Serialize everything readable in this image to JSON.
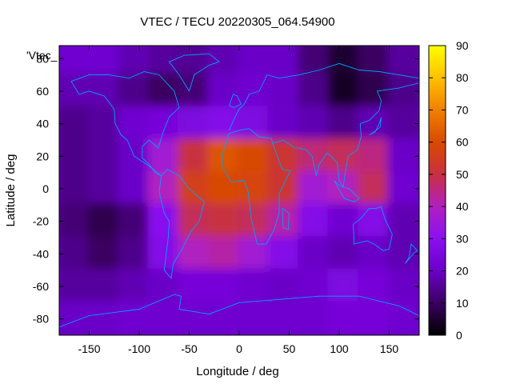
{
  "chart_data": {
    "type": "heatmap",
    "title": "VTEC / TECU 20220305_064.54900",
    "xlabel": "Longitude / deg",
    "ylabel": "Latitude / deg",
    "legend_label": "'Vtec_",
    "xlim": [
      -180,
      180
    ],
    "ylim": [
      -90,
      88
    ],
    "x_ticks": [
      -150,
      -100,
      -50,
      0,
      50,
      100,
      150
    ],
    "y_ticks": [
      -80,
      -60,
      -40,
      -20,
      0,
      20,
      40,
      60,
      80
    ],
    "colorbar": {
      "min": 0,
      "max": 90,
      "ticks": [
        0,
        10,
        20,
        30,
        40,
        50,
        60,
        70,
        80,
        90
      ]
    },
    "color_palette": [
      "#000000",
      "#3a0060",
      "#6a00c8",
      "#8a10f0",
      "#b020c0",
      "#c83040",
      "#d84a00",
      "#f08000",
      "#ffc000",
      "#ffff00"
    ],
    "map_line_color": "#00a0ff",
    "data_cells": [
      {
        "lon": -180,
        "lat": 80,
        "value": 22
      },
      {
        "lon": -150,
        "lat": 80,
        "value": 22
      },
      {
        "lon": -120,
        "lat": 80,
        "value": 18
      },
      {
        "lon": -90,
        "lat": 80,
        "value": 16
      },
      {
        "lon": -60,
        "lat": 80,
        "value": 15
      },
      {
        "lon": -30,
        "lat": 80,
        "value": 18
      },
      {
        "lon": 0,
        "lat": 80,
        "value": 20
      },
      {
        "lon": 30,
        "lat": 80,
        "value": 20
      },
      {
        "lon": 60,
        "lat": 80,
        "value": 12
      },
      {
        "lon": 90,
        "lat": 80,
        "value": 5
      },
      {
        "lon": 120,
        "lat": 80,
        "value": 10
      },
      {
        "lon": 150,
        "lat": 80,
        "value": 16
      },
      {
        "lon": -180,
        "lat": 60,
        "value": 18
      },
      {
        "lon": -150,
        "lat": 60,
        "value": 18
      },
      {
        "lon": -120,
        "lat": 60,
        "value": 14
      },
      {
        "lon": -90,
        "lat": 60,
        "value": 10
      },
      {
        "lon": -60,
        "lat": 60,
        "value": 12
      },
      {
        "lon": -30,
        "lat": 60,
        "value": 20
      },
      {
        "lon": 0,
        "lat": 60,
        "value": 22
      },
      {
        "lon": 30,
        "lat": 60,
        "value": 20
      },
      {
        "lon": 60,
        "lat": 60,
        "value": 14
      },
      {
        "lon": 90,
        "lat": 60,
        "value": 4
      },
      {
        "lon": 120,
        "lat": 60,
        "value": 8
      },
      {
        "lon": 150,
        "lat": 60,
        "value": 14
      },
      {
        "lon": -180,
        "lat": 40,
        "value": 14
      },
      {
        "lon": -150,
        "lat": 40,
        "value": 16
      },
      {
        "lon": -120,
        "lat": 40,
        "value": 22
      },
      {
        "lon": -90,
        "lat": 40,
        "value": 24
      },
      {
        "lon": -60,
        "lat": 40,
        "value": 26
      },
      {
        "lon": -30,
        "lat": 40,
        "value": 28
      },
      {
        "lon": 0,
        "lat": 40,
        "value": 26
      },
      {
        "lon": 30,
        "lat": 40,
        "value": 20
      },
      {
        "lon": 60,
        "lat": 40,
        "value": 18
      },
      {
        "lon": 90,
        "lat": 40,
        "value": 14
      },
      {
        "lon": 120,
        "lat": 40,
        "value": 18
      },
      {
        "lon": 150,
        "lat": 40,
        "value": 16
      },
      {
        "lon": -180,
        "lat": 20,
        "value": 14
      },
      {
        "lon": -150,
        "lat": 20,
        "value": 16
      },
      {
        "lon": -120,
        "lat": 20,
        "value": 20
      },
      {
        "lon": -90,
        "lat": 20,
        "value": 36
      },
      {
        "lon": -60,
        "lat": 20,
        "value": 50
      },
      {
        "lon": -30,
        "lat": 20,
        "value": 62
      },
      {
        "lon": 0,
        "lat": 20,
        "value": 60
      },
      {
        "lon": 30,
        "lat": 20,
        "value": 52
      },
      {
        "lon": 60,
        "lat": 20,
        "value": 46
      },
      {
        "lon": 90,
        "lat": 20,
        "value": 48
      },
      {
        "lon": 120,
        "lat": 20,
        "value": 45
      },
      {
        "lon": 150,
        "lat": 20,
        "value": 20
      },
      {
        "lon": -180,
        "lat": 0,
        "value": 14
      },
      {
        "lon": -150,
        "lat": 0,
        "value": 16
      },
      {
        "lon": -120,
        "lat": 0,
        "value": 20
      },
      {
        "lon": -90,
        "lat": 0,
        "value": 40
      },
      {
        "lon": -60,
        "lat": 0,
        "value": 56
      },
      {
        "lon": -30,
        "lat": 0,
        "value": 60
      },
      {
        "lon": 0,
        "lat": 0,
        "value": 58
      },
      {
        "lon": 30,
        "lat": 0,
        "value": 52
      },
      {
        "lon": 60,
        "lat": 0,
        "value": 36
      },
      {
        "lon": 90,
        "lat": 0,
        "value": 40
      },
      {
        "lon": 120,
        "lat": 0,
        "value": 48
      },
      {
        "lon": 150,
        "lat": 0,
        "value": 22
      },
      {
        "lon": -180,
        "lat": -20,
        "value": 12
      },
      {
        "lon": -150,
        "lat": -20,
        "value": 8
      },
      {
        "lon": -120,
        "lat": -20,
        "value": 12
      },
      {
        "lon": -90,
        "lat": -20,
        "value": 30
      },
      {
        "lon": -60,
        "lat": -20,
        "value": 48
      },
      {
        "lon": -30,
        "lat": -20,
        "value": 50
      },
      {
        "lon": 0,
        "lat": -20,
        "value": 48
      },
      {
        "lon": 30,
        "lat": -20,
        "value": 42
      },
      {
        "lon": 60,
        "lat": -20,
        "value": 28
      },
      {
        "lon": 90,
        "lat": -20,
        "value": 22
      },
      {
        "lon": 120,
        "lat": -20,
        "value": 28
      },
      {
        "lon": 150,
        "lat": -20,
        "value": 18
      },
      {
        "lon": -180,
        "lat": -40,
        "value": 14
      },
      {
        "lon": -150,
        "lat": -40,
        "value": 10
      },
      {
        "lon": -120,
        "lat": -40,
        "value": 14
      },
      {
        "lon": -90,
        "lat": -40,
        "value": 28
      },
      {
        "lon": -60,
        "lat": -40,
        "value": 40
      },
      {
        "lon": -30,
        "lat": -40,
        "value": 42
      },
      {
        "lon": 0,
        "lat": -40,
        "value": 36
      },
      {
        "lon": 30,
        "lat": -40,
        "value": 28
      },
      {
        "lon": 60,
        "lat": -40,
        "value": 20
      },
      {
        "lon": 90,
        "lat": -40,
        "value": 18
      },
      {
        "lon": 120,
        "lat": -40,
        "value": 20
      },
      {
        "lon": 150,
        "lat": -40,
        "value": 18
      },
      {
        "lon": -180,
        "lat": -60,
        "value": 16
      },
      {
        "lon": -150,
        "lat": -60,
        "value": 16
      },
      {
        "lon": -120,
        "lat": -60,
        "value": 18
      },
      {
        "lon": -90,
        "lat": -60,
        "value": 20
      },
      {
        "lon": -60,
        "lat": -60,
        "value": 24
      },
      {
        "lon": -30,
        "lat": -60,
        "value": 24
      },
      {
        "lon": 0,
        "lat": -60,
        "value": 22
      },
      {
        "lon": 30,
        "lat": -60,
        "value": 20
      },
      {
        "lon": 60,
        "lat": -60,
        "value": 22
      },
      {
        "lon": 90,
        "lat": -60,
        "value": 26
      },
      {
        "lon": 120,
        "lat": -60,
        "value": 24
      },
      {
        "lon": 150,
        "lat": -60,
        "value": 20
      },
      {
        "lon": -180,
        "lat": -80,
        "value": 20
      },
      {
        "lon": -150,
        "lat": -80,
        "value": 20
      },
      {
        "lon": -120,
        "lat": -80,
        "value": 22
      },
      {
        "lon": -90,
        "lat": -80,
        "value": 22
      },
      {
        "lon": -60,
        "lat": -80,
        "value": 22
      },
      {
        "lon": -30,
        "lat": -80,
        "value": 22
      },
      {
        "lon": 0,
        "lat": -80,
        "value": 22
      },
      {
        "lon": 30,
        "lat": -80,
        "value": 22
      },
      {
        "lon": 60,
        "lat": -80,
        "value": 22
      },
      {
        "lon": 90,
        "lat": -80,
        "value": 24
      },
      {
        "lon": 120,
        "lat": -80,
        "value": 24
      },
      {
        "lon": 150,
        "lat": -80,
        "value": 22
      }
    ]
  }
}
